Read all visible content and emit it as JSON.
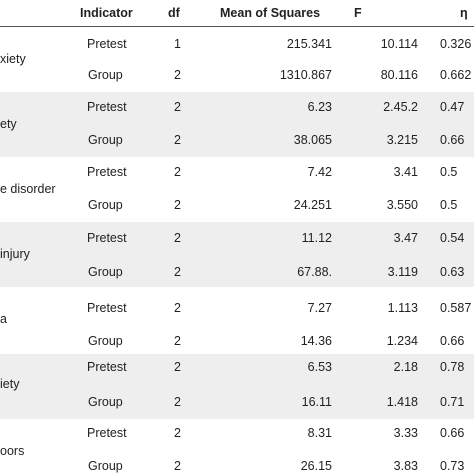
{
  "header": {
    "indicator": "Indicator",
    "df": "df",
    "mean_squares": "Mean of Squares",
    "f": "F",
    "eta": "η"
  },
  "groups": [
    {
      "name": "xiety",
      "rows": [
        {
          "indicator": "Pretest",
          "df": "1",
          "ms": "215.341",
          "f": "10.114",
          "eta": "0.326"
        },
        {
          "indicator": "Group",
          "df": "2",
          "ms": "1310.867",
          "f": "80.116",
          "eta": "0.662"
        }
      ]
    },
    {
      "name": "ety",
      "rows": [
        {
          "indicator": "Pretest",
          "df": "2",
          "ms": "6.23",
          "f": "2.45.2",
          "eta": "0.47"
        },
        {
          "indicator": "Group",
          "df": "2",
          "ms": "38.065",
          "f": "3.215",
          "eta": "0.66"
        }
      ]
    },
    {
      "name": "e disorder",
      "rows": [
        {
          "indicator": "Pretest",
          "df": "2",
          "ms": "7.42",
          "f": "3.41",
          "eta": "0.5"
        },
        {
          "indicator": "Group",
          "df": "2",
          "ms": "24.251",
          "f": "3.550",
          "eta": "0.5"
        }
      ]
    },
    {
      "name": "injury",
      "rows": [
        {
          "indicator": "Pretest",
          "df": "2",
          "ms": "11.12",
          "f": "3.47",
          "eta": "0.54"
        },
        {
          "indicator": "Group",
          "df": "2",
          "ms": "67.88.",
          "f": "3.119",
          "eta": "0.63"
        }
      ]
    },
    {
      "name": "a",
      "rows": [
        {
          "indicator": "Pretest",
          "df": "2",
          "ms": "7.27",
          "f": "1.113",
          "eta": "0.587"
        },
        {
          "indicator": "Group",
          "df": "2",
          "ms": "14.36",
          "f": "1.234",
          "eta": "0.66"
        }
      ]
    },
    {
      "name": "iety",
      "rows": [
        {
          "indicator": "Pretest",
          "df": "2",
          "ms": "6.53",
          "f": "2.18",
          "eta": "0.78"
        },
        {
          "indicator": "Group",
          "df": "2",
          "ms": "16.11",
          "f": "1.418",
          "eta": "0.71"
        }
      ]
    },
    {
      "name": "oors",
      "rows": [
        {
          "indicator": "Pretest",
          "df": "2",
          "ms": "8.31",
          "f": "3.33",
          "eta": "0.66"
        },
        {
          "indicator": "Group",
          "df": "2",
          "ms": "26.15",
          "f": "3.83",
          "eta": "0.73"
        }
      ]
    }
  ]
}
